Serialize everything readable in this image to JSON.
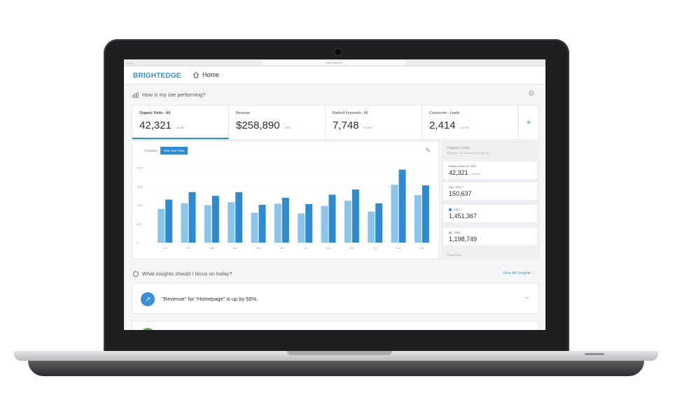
{
  "browser": {
    "url": "brightedge.com"
  },
  "nav": {
    "brand": "BRIGHTEDGE",
    "home_label": "Home"
  },
  "section": {
    "question": "How is my site performing?"
  },
  "kpis": [
    {
      "label": "Organic Visits - All",
      "value": "42,321",
      "delta": "↑ 15.8%"
    },
    {
      "label": "Revenue",
      "value": "$258,890",
      "delta": "↑ 13%"
    },
    {
      "label": "Ranked Keywords - All",
      "value": "7,748",
      "delta": "↑ 20.4%"
    },
    {
      "label": "Conversion - Leads",
      "value": "2,414",
      "delta": "↑ 14.7%"
    }
  ],
  "chart_toggle": {
    "trending": "Trending",
    "yoy": "Year over Year"
  },
  "chart_data": {
    "type": "bar",
    "categories": [
      "Jan",
      "Feb",
      "Mar",
      "Apr",
      "May",
      "Jun",
      "Jul",
      "Aug",
      "Sep",
      "Oct",
      "Nov",
      "Dec"
    ],
    "yticks": [
      "200K",
      "150K",
      "100K",
      "50K",
      "0"
    ],
    "ylim": [
      0,
      200000
    ],
    "series": [
      {
        "name": "2016",
        "color": "#8ac6ea",
        "values": [
          90000,
          105000,
          100000,
          108000,
          80000,
          104000,
          78000,
          98000,
          112000,
          83000,
          155000,
          127000
        ]
      },
      {
        "name": "2017",
        "color": "#2f8ad0",
        "values": [
          115000,
          135000,
          125000,
          135000,
          101000,
          120000,
          103000,
          128000,
          142000,
          105000,
          195000,
          153000
        ]
      }
    ]
  },
  "side": {
    "title": "Organic visits",
    "subtitle": "All pages, all devices for Google US",
    "stats": [
      {
        "label": "Week of Dec 10, 2017",
        "value": "42,321",
        "delta": "↑ 15.8%"
      },
      {
        "label": "Dec, 2017 *",
        "value": "150,637"
      },
      {
        "label": "2017 *",
        "value": "1,451,367",
        "dot": "#2f8ad0"
      },
      {
        "label": "2016",
        "value": "1,198,749",
        "dot": "#8ac6ea"
      }
    ],
    "footnote": "*Partial data"
  },
  "insights": {
    "question": "What insights should I focus on today?",
    "view_all": "View All Insights →",
    "item_text": "\"Revenue\" for \"Homepage\" is up by 55%."
  }
}
